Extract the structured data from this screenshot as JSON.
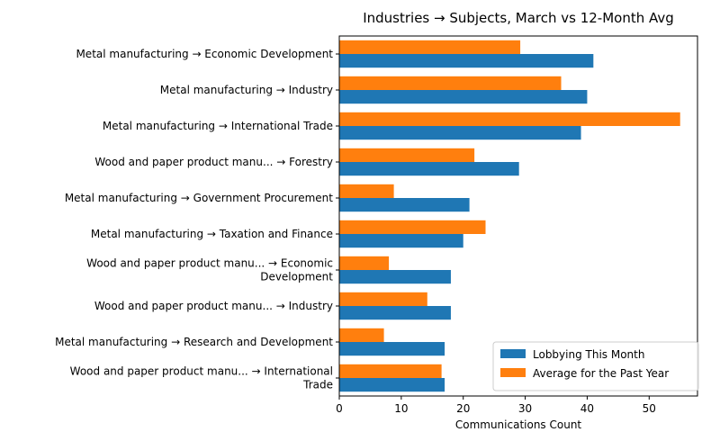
{
  "chart_data": {
    "type": "bar",
    "orientation": "horizontal",
    "title": "Industries → Subjects, March vs 12-Month Avg",
    "xlabel": "Communications Count",
    "ylabel": "",
    "xlim": [
      0,
      57.8
    ],
    "xticks": [
      0,
      10,
      20,
      30,
      40,
      50
    ],
    "grid": false,
    "legend_position": "lower-right",
    "categories": [
      [
        "Metal manufacturing → Economic Development"
      ],
      [
        "Metal manufacturing → Industry"
      ],
      [
        "Metal manufacturing → International Trade"
      ],
      [
        "Wood and paper product manu... → Forestry"
      ],
      [
        "Metal manufacturing → Government Procurement"
      ],
      [
        "Metal manufacturing → Taxation and Finance"
      ],
      [
        "Wood and paper product manu... → Economic",
        "Development"
      ],
      [
        "Wood and paper product manu... → Industry"
      ],
      [
        "Metal manufacturing → Research and Development"
      ],
      [
        "Wood and paper product manu... → International",
        "Trade"
      ]
    ],
    "series": [
      {
        "name": "Lobbying This Month",
        "color": "#1f77b4",
        "values": [
          41,
          40,
          39,
          29,
          21,
          20,
          18,
          18,
          17,
          17
        ]
      },
      {
        "name": "Average for the Past Year",
        "color": "#ff7f0e",
        "values": [
          29.2,
          35.8,
          55,
          21.8,
          8.8,
          23.6,
          8,
          14.2,
          7.2,
          16.5
        ]
      }
    ]
  }
}
